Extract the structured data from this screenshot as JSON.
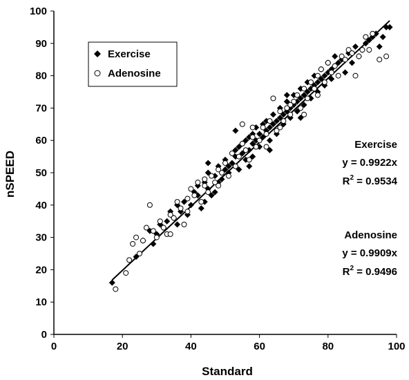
{
  "chart_data": {
    "type": "scatter",
    "xlabel": "Standard",
    "ylabel": "nSPEED",
    "xlim": [
      0,
      100
    ],
    "ylim": [
      0,
      100
    ],
    "x_ticks": [
      0,
      20,
      40,
      60,
      80,
      100
    ],
    "y_ticks": [
      0,
      10,
      20,
      30,
      40,
      50,
      60,
      70,
      80,
      90,
      100
    ],
    "grid": false,
    "legend": {
      "placement": "top-left",
      "entries": [
        {
          "label": "Exercise",
          "marker": "filled-diamond"
        },
        {
          "label": "Adenosine",
          "marker": "open-circle"
        }
      ]
    },
    "fit_line": {
      "x_range": [
        17,
        98
      ],
      "slope": 0.99
    },
    "annotations": {
      "exercise": {
        "title": "Exercise",
        "equation": "y = 0.9922x",
        "r2_label": "R",
        "r2_sup": "2",
        "r2_value": " = 0.9534"
      },
      "adenosine": {
        "title": "Adenosine",
        "equation": "y = 0.9909x",
        "r2_label": "R",
        "r2_sup": "2",
        "r2_value": " = 0.9496"
      }
    },
    "series": [
      {
        "name": "Exercise",
        "marker": "filled-diamond",
        "points": [
          [
            17,
            16
          ],
          [
            24,
            24
          ],
          [
            26,
            29
          ],
          [
            28,
            32
          ],
          [
            29,
            28
          ],
          [
            30,
            31
          ],
          [
            31,
            34
          ],
          [
            32,
            33
          ],
          [
            33,
            35
          ],
          [
            34,
            38
          ],
          [
            35,
            36
          ],
          [
            36,
            34
          ],
          [
            36,
            40
          ],
          [
            37,
            38
          ],
          [
            38,
            41
          ],
          [
            39,
            37
          ],
          [
            40,
            40
          ],
          [
            41,
            44
          ],
          [
            42,
            43
          ],
          [
            42,
            46
          ],
          [
            43,
            39
          ],
          [
            44,
            41
          ],
          [
            44,
            47
          ],
          [
            45,
            50
          ],
          [
            45,
            45
          ],
          [
            46,
            43
          ],
          [
            47,
            49
          ],
          [
            48,
            47
          ],
          [
            48,
            52
          ],
          [
            49,
            48
          ],
          [
            50,
            51
          ],
          [
            50,
            54
          ],
          [
            51,
            50
          ],
          [
            51,
            52
          ],
          [
            52,
            53
          ],
          [
            53,
            55
          ],
          [
            53,
            57
          ],
          [
            54,
            51
          ],
          [
            54,
            58
          ],
          [
            55,
            56
          ],
          [
            55,
            59
          ],
          [
            56,
            54
          ],
          [
            56,
            60
          ],
          [
            57,
            57
          ],
          [
            57,
            61
          ],
          [
            58,
            59
          ],
          [
            58,
            62
          ],
          [
            59,
            60
          ],
          [
            59,
            64
          ],
          [
            60,
            62
          ],
          [
            60,
            58
          ],
          [
            61,
            61
          ],
          [
            61,
            65
          ],
          [
            62,
            63
          ],
          [
            62,
            66
          ],
          [
            63,
            64
          ],
          [
            63,
            60
          ],
          [
            64,
            65
          ],
          [
            64,
            68
          ],
          [
            65,
            66
          ],
          [
            65,
            62
          ],
          [
            66,
            67
          ],
          [
            66,
            70
          ],
          [
            67,
            68
          ],
          [
            67,
            65
          ],
          [
            68,
            69
          ],
          [
            68,
            72
          ],
          [
            69,
            70
          ],
          [
            69,
            67
          ],
          [
            70,
            71
          ],
          [
            70,
            74
          ],
          [
            71,
            72
          ],
          [
            71,
            69
          ],
          [
            72,
            73
          ],
          [
            72,
            76
          ],
          [
            73,
            74
          ],
          [
            73,
            71
          ],
          [
            74,
            75
          ],
          [
            74,
            78
          ],
          [
            75,
            76
          ],
          [
            75,
            73
          ],
          [
            76,
            77
          ],
          [
            76,
            80
          ],
          [
            77,
            78
          ],
          [
            77,
            75
          ],
          [
            78,
            79
          ],
          [
            78,
            82
          ],
          [
            79,
            80
          ],
          [
            79,
            77
          ],
          [
            80,
            81
          ],
          [
            80,
            84
          ],
          [
            81,
            82
          ],
          [
            81,
            79
          ],
          [
            82,
            83
          ],
          [
            82,
            86
          ],
          [
            83,
            84
          ],
          [
            84,
            85
          ],
          [
            85,
            81
          ],
          [
            86,
            87
          ],
          [
            87,
            84
          ],
          [
            88,
            89
          ],
          [
            89,
            86
          ],
          [
            90,
            88
          ],
          [
            91,
            90
          ],
          [
            92,
            91
          ],
          [
            93,
            92
          ],
          [
            94,
            93
          ],
          [
            95,
            89
          ],
          [
            96,
            92
          ],
          [
            97,
            95
          ],
          [
            98,
            95
          ],
          [
            53,
            63
          ],
          [
            47,
            44
          ],
          [
            58,
            55
          ],
          [
            63,
            57
          ],
          [
            68,
            74
          ],
          [
            72,
            67
          ],
          [
            57,
            52
          ],
          [
            45,
            53
          ]
        ]
      },
      {
        "name": "Adenosine",
        "marker": "open-circle",
        "points": [
          [
            18,
            14
          ],
          [
            21,
            19
          ],
          [
            22,
            23
          ],
          [
            23,
            28
          ],
          [
            24,
            30
          ],
          [
            25,
            25
          ],
          [
            26,
            29
          ],
          [
            27,
            33
          ],
          [
            28,
            40
          ],
          [
            29,
            32
          ],
          [
            30,
            30
          ],
          [
            31,
            35
          ],
          [
            32,
            33
          ],
          [
            33,
            31
          ],
          [
            34,
            37
          ],
          [
            35,
            36
          ],
          [
            36,
            41
          ],
          [
            37,
            39
          ],
          [
            38,
            34
          ],
          [
            39,
            42
          ],
          [
            40,
            45
          ],
          [
            41,
            43
          ],
          [
            42,
            47
          ],
          [
            43,
            41
          ],
          [
            44,
            46
          ],
          [
            45,
            44
          ],
          [
            46,
            49
          ],
          [
            47,
            47
          ],
          [
            48,
            51
          ],
          [
            49,
            50
          ],
          [
            50,
            53
          ],
          [
            51,
            49
          ],
          [
            52,
            56
          ],
          [
            53,
            52
          ],
          [
            54,
            55
          ],
          [
            55,
            65
          ],
          [
            56,
            57
          ],
          [
            57,
            54
          ],
          [
            58,
            61
          ],
          [
            59,
            58
          ],
          [
            60,
            60
          ],
          [
            61,
            64
          ],
          [
            62,
            62
          ],
          [
            63,
            66
          ],
          [
            64,
            73
          ],
          [
            65,
            63
          ],
          [
            66,
            69
          ],
          [
            67,
            66
          ],
          [
            68,
            70
          ],
          [
            69,
            68
          ],
          [
            70,
            72
          ],
          [
            71,
            74
          ],
          [
            72,
            70
          ],
          [
            73,
            76
          ],
          [
            74,
            73
          ],
          [
            75,
            78
          ],
          [
            76,
            76
          ],
          [
            77,
            80
          ],
          [
            78,
            82
          ],
          [
            79,
            78
          ],
          [
            80,
            84
          ],
          [
            81,
            81
          ],
          [
            82,
            83
          ],
          [
            83,
            80
          ],
          [
            84,
            86
          ],
          [
            85,
            85
          ],
          [
            86,
            88
          ],
          [
            87,
            87
          ],
          [
            88,
            80
          ],
          [
            89,
            86
          ],
          [
            90,
            88
          ],
          [
            91,
            92
          ],
          [
            92,
            88
          ],
          [
            93,
            93
          ],
          [
            95,
            85
          ],
          [
            97,
            86
          ],
          [
            55,
            59
          ],
          [
            48,
            46
          ],
          [
            62,
            58
          ],
          [
            66,
            64
          ],
          [
            73,
            68
          ],
          [
            39,
            38
          ],
          [
            34,
            31
          ],
          [
            44,
            48
          ],
          [
            58,
            64
          ],
          [
            69,
            71
          ],
          [
            77,
            74
          ]
        ]
      }
    ]
  }
}
